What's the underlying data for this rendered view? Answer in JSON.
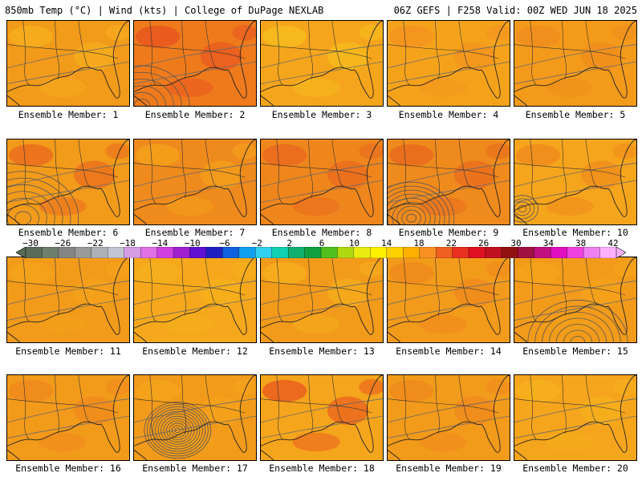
{
  "header": {
    "left": "850mb Temp (°C) | Wind (kts) | College of DuPage NEXLAB",
    "right": "06Z GEFS | F258 Valid: 00Z WED JUN 18 2025"
  },
  "label_prefix": "Ensemble Member:",
  "members": [
    {
      "id": 1,
      "label": "Ensemble Member: 1",
      "fill": "#f29a1a",
      "accent": "#f7b21d",
      "low": null
    },
    {
      "id": 2,
      "label": "Ensemble Member: 2",
      "fill": "#ef7a1c",
      "accent": "#e8501f",
      "low": "far-sw"
    },
    {
      "id": 3,
      "label": "Ensemble Member: 3",
      "fill": "#f5a51b",
      "accent": "#f7c11e",
      "low": null
    },
    {
      "id": 4,
      "label": "Ensemble Member: 4",
      "fill": "#f5a21b",
      "accent": "#f39020",
      "low": null
    },
    {
      "id": 5,
      "label": "Ensemble Member: 5",
      "fill": "#f39a1b",
      "accent": "#ef8a1d",
      "low": null
    },
    {
      "id": 6,
      "label": "Ensemble Member: 6",
      "fill": "#f29a1a",
      "accent": "#e8641e",
      "low": "west"
    },
    {
      "id": 7,
      "label": "Ensemble Member: 7",
      "fill": "#ef8a1c",
      "accent": "#f5a51b",
      "low": null
    },
    {
      "id": 8,
      "label": "Ensemble Member: 8",
      "fill": "#ef861c",
      "accent": "#e8641e",
      "low": null
    },
    {
      "id": 9,
      "label": "Ensemble Member: 9",
      "fill": "#ef8a1c",
      "accent": "#e8641e",
      "low": "central"
    },
    {
      "id": 10,
      "label": "Ensemble Member: 10",
      "fill": "#f5a51b",
      "accent": "#ef861c",
      "low": "west-small"
    },
    {
      "id": 11,
      "label": "Ensemble Member: 11",
      "fill": "#f29a1a",
      "accent": "#f5a51b",
      "low": null
    },
    {
      "id": 12,
      "label": "Ensemble Member: 12",
      "fill": "#f5a81b",
      "accent": "#f7b21d",
      "low": null
    },
    {
      "id": 13,
      "label": "Ensemble Member: 13",
      "fill": "#f29a1a",
      "accent": "#f7b21d",
      "low": null
    },
    {
      "id": 14,
      "label": "Ensemble Member: 14",
      "fill": "#f29a1a",
      "accent": "#ef861c",
      "low": null
    },
    {
      "id": 15,
      "label": "Ensemble Member: 15",
      "fill": "#f29a1a",
      "accent": "#f5a51b",
      "low": "east"
    },
    {
      "id": 16,
      "label": "Ensemble Member: 16",
      "fill": "#f29a1a",
      "accent": "#ef861c",
      "low": null
    },
    {
      "id": 17,
      "label": "Ensemble Member: 17",
      "fill": "#f29a1a",
      "accent": "#f5a51b",
      "low": "tight"
    },
    {
      "id": 18,
      "label": "Ensemble Member: 18",
      "fill": "#f5a51b",
      "accent": "#e8501f",
      "low": null
    },
    {
      "id": 19,
      "label": "Ensemble Member: 19",
      "fill": "#f29a1a",
      "accent": "#ef861c",
      "low": null
    },
    {
      "id": 20,
      "label": "Ensemble Member: 20",
      "fill": "#f5a51b",
      "accent": "#f7b21d",
      "low": null
    }
  ],
  "colorbar": {
    "labels": [
      "−30",
      "−26",
      "−22",
      "−18",
      "−14",
      "−10",
      "−6",
      "−2",
      "2",
      "6",
      "10",
      "14",
      "18",
      "22",
      "26",
      "30",
      "34",
      "38",
      "42"
    ],
    "colors": [
      "#5a6b5a",
      "#6f7f6f",
      "#858585",
      "#9a9a9a",
      "#aeb0b8",
      "#c4c4d4",
      "#d69ce6",
      "#e070e6",
      "#d040e0",
      "#a020d0",
      "#6010d0",
      "#2020c0",
      "#1060e0",
      "#10a0f0",
      "#30d0f0",
      "#10d0b0",
      "#10b070",
      "#10a040",
      "#50c020",
      "#b0d810",
      "#e8ec10",
      "#fff000",
      "#ffd000",
      "#ffb000",
      "#f89020",
      "#f06020",
      "#e83020",
      "#e01020",
      "#c01020",
      "#901010",
      "#a01040",
      "#c01080",
      "#e010c0",
      "#f040e0",
      "#f080f0",
      "#ffb0ff"
    ]
  }
}
